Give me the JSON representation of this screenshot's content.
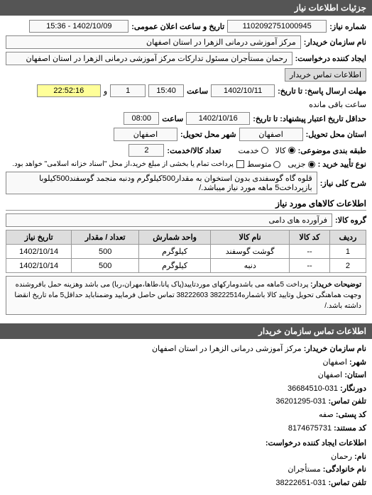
{
  "header": {
    "title": "جزئیات اطلاعات نیاز"
  },
  "info": {
    "reqNumLabel": "شماره نیاز:",
    "reqNum": "1102092751000945",
    "announceLabel": "تاریخ و ساعت اعلان عمومی:",
    "announceVal": "1402/10/09 - 15:36",
    "buyerNameLabel": "نام سازمان خریدار:",
    "buyerName": "مرکز آموزشی درمانی الزهرا در استان اصفهان",
    "requesterLabel": "ایجاد کننده درخواست:",
    "requester": "رحمان مستأجران مسئول تدارکات مرکز آموزشی درمانی الزهرا در استان اصفهان",
    "contactBtn": "اطلاعات تماس خریدار",
    "deadlineLabel": "مهلت ارسال پاسخ: تا تاریخ:",
    "deadlineDate": "1402/10/11",
    "timeLabel": "ساعت",
    "deadlineTime": "15:40",
    "countNum": "1",
    "remainingLabel": "و",
    "remainingTime": "22:52:16",
    "remainingAfter": "ساعت باقی مانده",
    "validityLabel": "حداقل تاریخ اعتبار پیشنهاد: تا تاریخ:",
    "validityDate": "1402/10/16",
    "validityTime": "08:00",
    "deliveryProvLabel": "استان محل تحویل:",
    "deliveryProv": "اصفهان",
    "deliveryCityLabel": "شهر محل تحویل:",
    "deliveryCity": "اصفهان",
    "goodsClassLabel": "طبقه بندی موضوعی:",
    "radioGoods": "کالا",
    "radioService": "خدمت",
    "goodsCountLabel": "تعداد کالا/خدمت:",
    "goodsCount": "2",
    "confirmLabel": "نوع تأیید خرید :",
    "radioPartial": "جزیی",
    "radioMedium": "متوسط",
    "checkboxNote": "پرداخت تمام یا بخشی از مبلغ خرید،از محل \"اسناد خزانه اسلامی\" خواهد بود.",
    "summaryLabel": "شرح کلی نیاز:",
    "summary": "قلوه گاه گوسفندی بدون استخوان به مقدار500کیلوگرم ودنبه منجمد گوسفند500کیلوبا بازپرداخت5 ماهه مورد نیاز میباشد./"
  },
  "goodsSection": {
    "title": "اطلاعات کالاهای مورد نیاز",
    "groupLabel": "گروه کالا:",
    "groupVal": "فرآورده های دامی",
    "columns": [
      "ردیف",
      "کد کالا",
      "نام کالا",
      "واحد شمارش",
      "تعداد / مقدار",
      "تاریخ نیاز"
    ],
    "rows": [
      [
        "1",
        "--",
        "گوشت گوسفند",
        "کیلوگرم",
        "500",
        "1402/10/14"
      ],
      [
        "2",
        "--",
        "دنبه",
        "کیلوگرم",
        "500",
        "1402/10/14"
      ]
    ]
  },
  "buyerNote": {
    "label": "توضیحات خریدار:",
    "text": "پرداخت 5ماهه می باشدومارکهای موردتایید(پاک پانا،طاها،مهران،ربا) می باشد وهزینه حمل بافروشنده وجهت هماهنگی تحویل وتایید کالا باشماره38222514 38222603 تماس حاصل فرمایید وضمناباید حداقل5 ماه تاریخ انقضا داشته باشد./"
  },
  "contact": {
    "header": "اطلاعات تماس سازمان خریدار",
    "orgLabel": "نام سازمان خریدار:",
    "org": "مرکز آموزشی درمانی الزهرا در استان اصفهان",
    "cityLabel": "شهر:",
    "city": "اصفهان",
    "provLabel": "استان:",
    "prov": "اصفهان",
    "faxLabel": "دورنگار:",
    "fax": "031-36684510",
    "phoneLabel": "تلفن تماس:",
    "phone": "031-36201295",
    "postLabel": "کد پستی:",
    "post": "صفه",
    "regLabel": "کد مستند:",
    "reg": "8174675731",
    "reqHeader": "اطلاعات ایجاد کننده درخواست:",
    "nameLabel": "نام:",
    "name": "رحمان",
    "familyLabel": "نام خانوادگی:",
    "family": "مستأجران",
    "reqPhoneLabel": "تلفن تماس:",
    "reqPhone": "031-38222651"
  }
}
